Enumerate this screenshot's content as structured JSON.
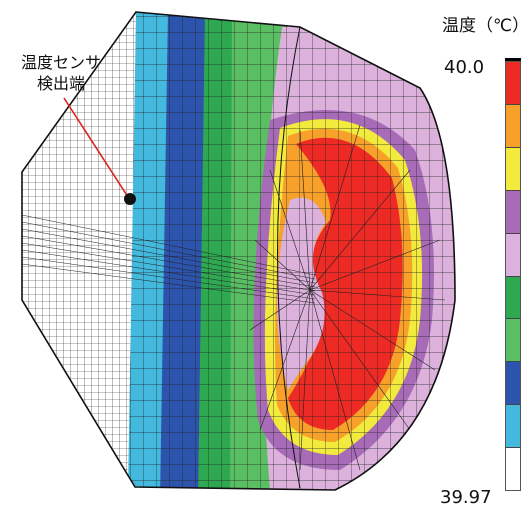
{
  "legend": {
    "title": "温度（℃）",
    "max_label": "40.0",
    "min_label": "39.97",
    "bands": [
      "#ed2a24",
      "#f7a12a",
      "#f2ea3d",
      "#a76bb7",
      "#dcb1dc",
      "#2fa852",
      "#5abf63",
      "#2d54ad",
      "#43b9de",
      "#ffffff"
    ]
  },
  "annotation": {
    "line1": "温度センサ",
    "line2": "検出端"
  },
  "colors": {
    "mesh": "#222222",
    "pointer": "#e02020",
    "marker": "#111111"
  }
}
